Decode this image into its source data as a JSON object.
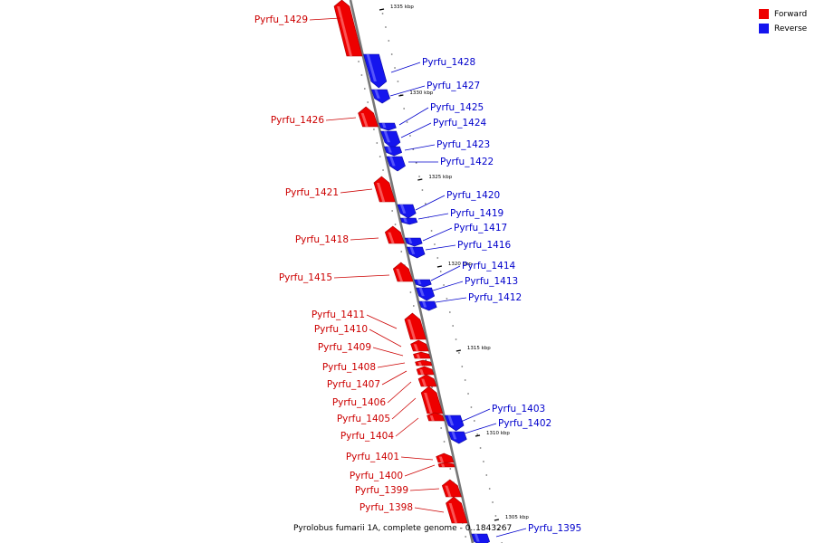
{
  "legend": [
    {
      "label": "Forward",
      "color": "#ee0000"
    },
    {
      "label": "Reverse",
      "color": "#1515ee"
    }
  ],
  "caption": "Pyrolobus fumarii 1A, complete genome - 0..1843267",
  "ticks": [
    "1335 kbp",
    "1330 kbp",
    "1325 kbp",
    "1320 kbp",
    "1315 kbp",
    "1310 kbp",
    "1305 kbp"
  ],
  "genes": [
    {
      "name": "Pyrfu_1429",
      "strand": "forward"
    },
    {
      "name": "Pyrfu_1428",
      "strand": "reverse"
    },
    {
      "name": "Pyrfu_1427",
      "strand": "reverse"
    },
    {
      "name": "Pyrfu_1426",
      "strand": "forward"
    },
    {
      "name": "Pyrfu_1425",
      "strand": "reverse"
    },
    {
      "name": "Pyrfu_1424",
      "strand": "reverse"
    },
    {
      "name": "Pyrfu_1423",
      "strand": "reverse"
    },
    {
      "name": "Pyrfu_1422",
      "strand": "reverse"
    },
    {
      "name": "Pyrfu_1421",
      "strand": "forward"
    },
    {
      "name": "Pyrfu_1420",
      "strand": "reverse"
    },
    {
      "name": "Pyrfu_1419",
      "strand": "reverse"
    },
    {
      "name": "Pyrfu_1418",
      "strand": "forward"
    },
    {
      "name": "Pyrfu_1417",
      "strand": "reverse"
    },
    {
      "name": "Pyrfu_1416",
      "strand": "reverse"
    },
    {
      "name": "Pyrfu_1415",
      "strand": "forward"
    },
    {
      "name": "Pyrfu_1414",
      "strand": "reverse"
    },
    {
      "name": "Pyrfu_1413",
      "strand": "reverse"
    },
    {
      "name": "Pyrfu_1412",
      "strand": "reverse"
    },
    {
      "name": "Pyrfu_1411",
      "strand": "forward"
    },
    {
      "name": "Pyrfu_1410",
      "strand": "forward"
    },
    {
      "name": "Pyrfu_1409",
      "strand": "forward"
    },
    {
      "name": "Pyrfu_1408",
      "strand": "forward"
    },
    {
      "name": "Pyrfu_1407",
      "strand": "forward"
    },
    {
      "name": "Pyrfu_1406",
      "strand": "forward"
    },
    {
      "name": "Pyrfu_1405",
      "strand": "forward"
    },
    {
      "name": "Pyrfu_1404",
      "strand": "forward"
    },
    {
      "name": "Pyrfu_1403",
      "strand": "reverse"
    },
    {
      "name": "Pyrfu_1402",
      "strand": "reverse"
    },
    {
      "name": "Pyrfu_1401",
      "strand": "forward"
    },
    {
      "name": "Pyrfu_1400",
      "strand": "forward"
    },
    {
      "name": "Pyrfu_1399",
      "strand": "forward"
    },
    {
      "name": "Pyrfu_1398",
      "strand": "forward"
    },
    {
      "name": "Pyrfu_1395",
      "strand": "reverse"
    }
  ]
}
